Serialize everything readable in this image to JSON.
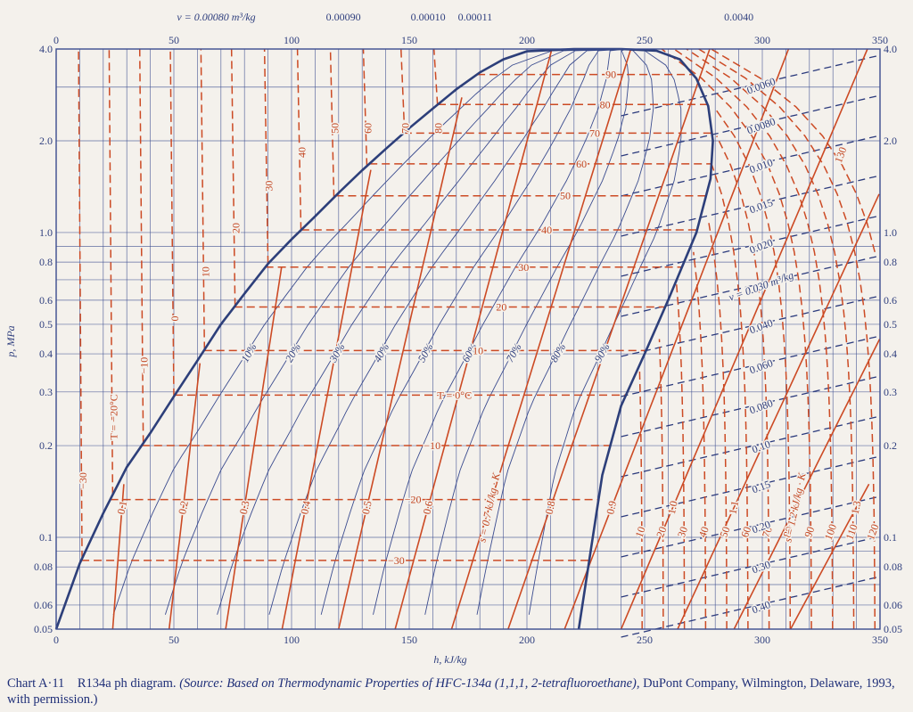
{
  "chart_data": {
    "type": "line",
    "xlabel": "h, kJ/kg",
    "ylabel": "p, MPa",
    "x_ticks": [
      0,
      50,
      100,
      150,
      200,
      250,
      300,
      350
    ],
    "y_ticks": [
      {
        "value": 0.05,
        "label": "0.05"
      },
      {
        "value": 0.06,
        "label": "0.06"
      },
      {
        "value": 0.08,
        "label": "0.08"
      },
      {
        "value": 0.1,
        "label": "0.1"
      },
      {
        "value": 0.2,
        "label": "0.2"
      },
      {
        "value": 0.3,
        "label": "0.3"
      },
      {
        "value": 0.4,
        "label": "0.4"
      },
      {
        "value": 0.5,
        "label": "0.5"
      },
      {
        "value": 0.6,
        "label": "0.6"
      },
      {
        "value": 0.8,
        "label": "0.8"
      },
      {
        "value": 1.0,
        "label": "1.0"
      },
      {
        "value": 2.0,
        "label": "2.0"
      },
      {
        "value": 4.0,
        "label": "4.0"
      }
    ],
    "xlim": [
      0,
      350
    ],
    "ylim": [
      0.05,
      4.0
    ],
    "y_scale": "log",
    "grid": true,
    "top_volume_labels": [
      {
        "label": "v = 0.00080 m³/kg",
        "h": 68
      },
      {
        "label": "0.00090",
        "h": 122
      },
      {
        "label": "0.00010",
        "h": 158
      },
      {
        "label": "0.00011",
        "h": 178
      },
      {
        "label": "0.0040",
        "h": 290
      }
    ],
    "saturation_dome": {
      "liquid": [
        [
          0,
          0.05
        ],
        [
          10,
          0.082
        ],
        [
          20,
          0.12
        ],
        [
          30,
          0.17
        ],
        [
          40,
          0.22
        ],
        [
          50,
          0.29
        ],
        [
          60,
          0.38
        ],
        [
          70,
          0.5
        ],
        [
          80,
          0.63
        ],
        [
          90,
          0.79
        ],
        [
          100,
          0.95
        ],
        [
          110,
          1.13
        ],
        [
          120,
          1.35
        ],
        [
          130,
          1.6
        ],
        [
          140,
          1.88
        ],
        [
          150,
          2.2
        ],
        [
          160,
          2.55
        ],
        [
          170,
          2.95
        ],
        [
          180,
          3.35
        ],
        [
          190,
          3.7
        ],
        [
          200,
          3.93
        ],
        [
          220,
          4.0
        ],
        [
          240,
          4.0
        ]
      ],
      "vapor": [
        [
          240,
          4.0
        ],
        [
          255,
          3.95
        ],
        [
          265,
          3.7
        ],
        [
          272,
          3.2
        ],
        [
          277,
          2.6
        ],
        [
          279,
          2.0
        ],
        [
          278,
          1.5
        ],
        [
          272,
          1.0
        ],
        [
          260,
          0.6
        ],
        [
          250,
          0.4
        ],
        [
          240,
          0.27
        ],
        [
          232,
          0.16
        ],
        [
          222,
          0.05
        ]
      ]
    },
    "quality_labels": [
      "10%",
      "20%",
      "30%",
      "40%",
      "50%",
      "60%",
      "70%",
      "80%",
      "90%"
    ],
    "isotherms_two_phase": [
      {
        "label": "90",
        "p": 3.3
      },
      {
        "label": "80",
        "p": 2.63
      },
      {
        "label": "70",
        "p": 2.12
      },
      {
        "label": "60",
        "p": 1.68
      },
      {
        "label": "50",
        "p": 1.32
      },
      {
        "label": "40",
        "p": 1.02
      },
      {
        "label": "30",
        "p": 0.77
      },
      {
        "label": "20",
        "p": 0.57
      },
      {
        "label": "10",
        "p": 0.41
      },
      {
        "label": "T = 0°C",
        "p": 0.293
      },
      {
        "label": "−10",
        "p": 0.2
      },
      {
        "label": "−20",
        "p": 0.133
      },
      {
        "label": "−30",
        "p": 0.084
      }
    ],
    "liquid_isotherms": [
      {
        "label": "−30",
        "h": 11
      },
      {
        "label": "T = −20°C",
        "h": 24
      },
      {
        "label": "−10",
        "h": 37
      },
      {
        "label": "0",
        "h": 50
      },
      {
        "label": "10",
        "h": 63
      },
      {
        "label": "20",
        "h": 76
      },
      {
        "label": "30",
        "h": 90
      },
      {
        "label": "40",
        "h": 104
      },
      {
        "label": "50",
        "h": 118
      },
      {
        "label": "60",
        "h": 132
      },
      {
        "label": "70",
        "h": 148
      },
      {
        "label": "80",
        "h": 162
      }
    ],
    "vapor_isotherm_labels": [
      "10",
      "20",
      "30",
      "40",
      "50",
      "60",
      "70",
      "80",
      "90",
      "100",
      "110",
      "120",
      "130"
    ],
    "entropy_labels": [
      "0.1",
      "0.2",
      "0.3",
      "0.4",
      "0.5",
      "0.6",
      "s = 0.7 kJ/kg · K",
      "0.8",
      "0.9",
      "1.0",
      "1.1",
      "s = 1.2 kJ/kg · K",
      "1.3"
    ],
    "volume_labels": [
      "0.0060",
      "0.0080",
      "0.010",
      "0.015",
      "0.020",
      "v = 0.030 m³/kg",
      "0.040",
      "0.060",
      "0.080",
      "0.10",
      "0.15",
      "0.20",
      "0.30",
      "0.40"
    ],
    "colors": {
      "grid": "#3b4c8f",
      "dome": "#2d3f7a",
      "quality": "#3b4c8f",
      "isotherm": "#cc4a24",
      "entropy": "#cc4a24",
      "volume": "#2b3a7c",
      "text_blue": "#2f3f7e",
      "text_orange": "#c2441f",
      "background": "#f4f1ec"
    }
  },
  "caption": {
    "label": "Chart A·11",
    "title": "R134a ph diagram.",
    "source_prefix": "(Source: Based on ",
    "source_title": "Thermodynamic Properties of HFC-134a (1,1,1, 2-tetrafluoroethane),",
    "source_rest": " DuPont Company, Wilmington, Delaware, 1993, with permission.)"
  }
}
